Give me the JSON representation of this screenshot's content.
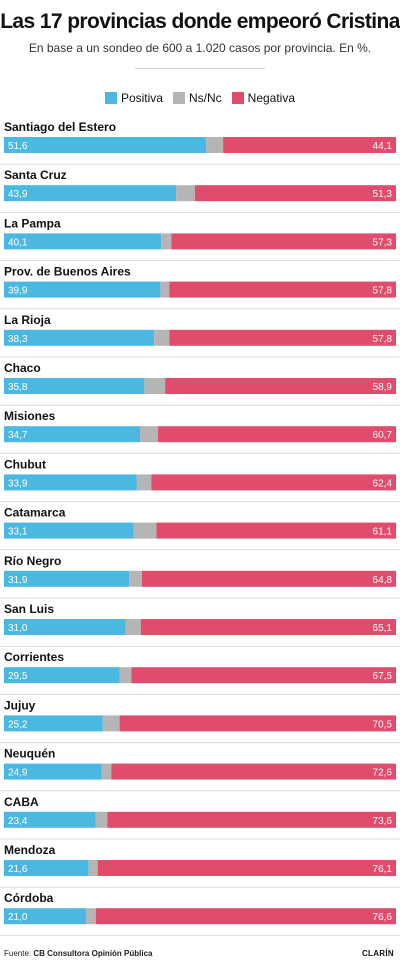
{
  "title": "Las 17 provincias donde empeoró Cristina",
  "subtitle": "En base a un sondeo de 600 a 1.020 casos por provincia. En %.",
  "footer": {
    "source_label": "Fuente:",
    "source_name": "CB Consultora Opinión Pública",
    "brand": "CLARÍN"
  },
  "colors": {
    "positiva": "#4ab8e0",
    "nsnc": "#b5b5b5",
    "negativa": "#e04c6c",
    "separator": "#d9d9d9"
  },
  "chart_data": {
    "type": "bar",
    "stacked": true,
    "orientation": "horizontal",
    "legend_position": "top",
    "xlim": [
      0,
      100
    ],
    "categories": [
      "Santiago del Estero",
      "Santa Cruz",
      "La Pampa",
      "Prov. de Buenos Aires",
      "La Rioja",
      "Chaco",
      "Misiones",
      "Chubut",
      "Catamarca",
      "Río Negro",
      "San Luis",
      "Corrientes",
      "Jujuy",
      "Neuquén",
      "CABA",
      "Mendoza",
      "Córdoba"
    ],
    "series": [
      {
        "name": "Positiva",
        "values": [
          "51,6",
          "43,9",
          "40,1",
          "39,9",
          "38,3",
          "35,8",
          "34,7",
          "33,9",
          "33,1",
          "31,9",
          "31,0",
          "29,5",
          "25,2",
          "24,9",
          "23,4",
          "21,6",
          "21,0"
        ]
      },
      {
        "name": "Ns/Nc",
        "values": [
          4.3,
          4.8,
          2.6,
          2.3,
          3.9,
          5.3,
          4.6,
          3.7,
          5.8,
          3.3,
          3.9,
          3.0,
          4.3,
          2.5,
          3.0,
          2.3,
          2.4
        ]
      },
      {
        "name": "Negativa",
        "values": [
          "44,1",
          "51,3",
          "57,3",
          "57,8",
          "57,8",
          "58,9",
          "60,7",
          "62,4",
          "61,1",
          "64,8",
          "65,1",
          "67,5",
          "70,5",
          "72,6",
          "73,6",
          "76,1",
          "76,6"
        ]
      }
    ]
  }
}
